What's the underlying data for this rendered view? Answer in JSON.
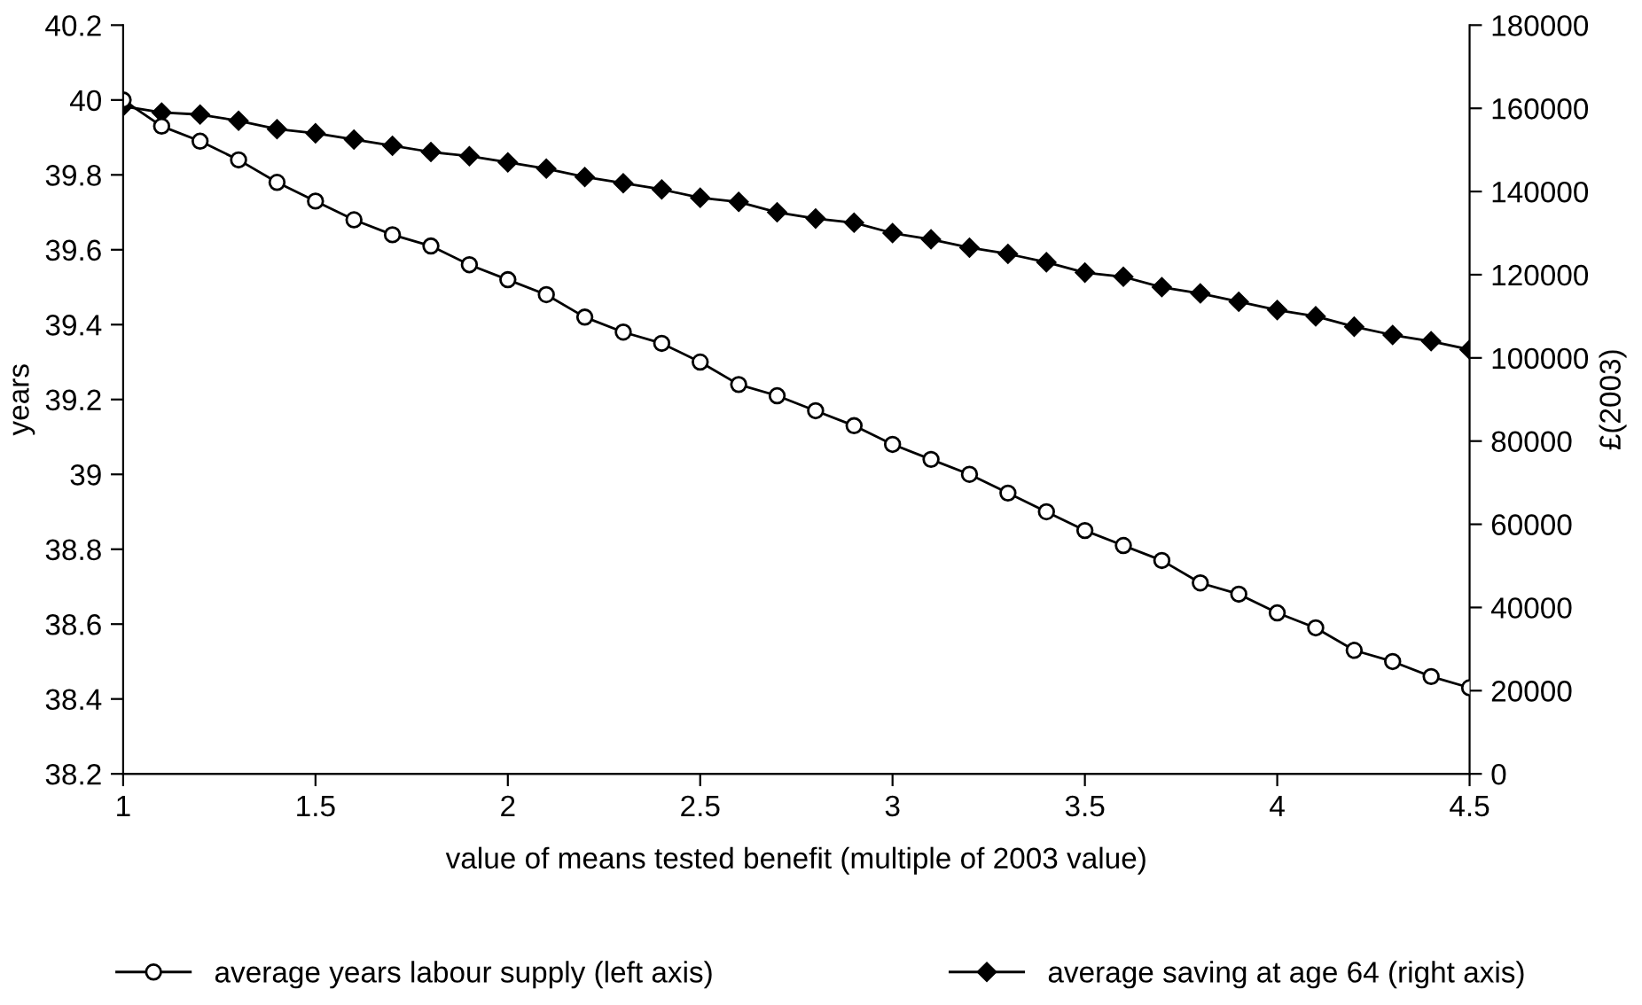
{
  "chart_data": {
    "type": "line",
    "xlabel": "value of means tested benefit (multiple of 2003 value)",
    "ylabel": "years",
    "y2label": "£(2003)",
    "x": [
      1.0,
      1.1,
      1.2,
      1.3,
      1.4,
      1.5,
      1.6,
      1.7,
      1.8,
      1.9,
      2.0,
      2.1,
      2.2,
      2.3,
      2.4,
      2.5,
      2.6,
      2.7,
      2.8,
      2.9,
      3.0,
      3.1,
      3.2,
      3.3,
      3.4,
      3.5,
      3.6,
      3.7,
      3.8,
      3.9,
      4.0,
      4.1,
      4.2,
      4.3,
      4.4,
      4.5
    ],
    "series": [
      {
        "name": "average years labour supply (left axis)",
        "color": "#000000",
        "marker": "circle",
        "values": [
          40.0,
          39.93,
          39.89,
          39.84,
          39.78,
          39.73,
          39.68,
          39.64,
          39.61,
          39.56,
          39.52,
          39.48,
          39.42,
          39.38,
          39.35,
          39.3,
          39.24,
          39.21,
          39.17,
          39.13,
          39.08,
          39.04,
          39.0,
          38.95,
          38.9,
          38.85,
          38.81,
          38.77,
          38.71,
          38.68,
          38.63,
          38.59,
          38.53,
          38.5,
          38.46,
          38.43
        ]
      },
      {
        "name": "average saving at age 64 (right axis)",
        "color": "#000000",
        "marker": "diamond",
        "axis": "y2",
        "values": [
          160500,
          159000,
          158500,
          157000,
          155000,
          154000,
          152500,
          151000,
          149500,
          148500,
          147000,
          145500,
          143500,
          142000,
          140500,
          138500,
          137500,
          135000,
          133500,
          132500,
          130000,
          128500,
          126500,
          125000,
          123000,
          120500,
          119500,
          117000,
          115500,
          113500,
          111500,
          110000,
          107500,
          105500,
          104000,
          102000
        ]
      }
    ],
    "xlim": [
      1,
      4.5
    ],
    "xticks": [
      1,
      1.5,
      2,
      2.5,
      3,
      3.5,
      4,
      4.5
    ],
    "ylim": [
      38.2,
      40.2
    ],
    "yticks": [
      38.2,
      38.4,
      38.6,
      38.8,
      39,
      39.2,
      39.4,
      39.6,
      39.8,
      40,
      40.2
    ],
    "y2lim": [
      0,
      180000
    ],
    "y2ticks": [
      0,
      20000,
      40000,
      60000,
      80000,
      100000,
      120000,
      140000,
      160000,
      180000
    ],
    "grid": false,
    "legend": "bottom",
    "line_style": "solid"
  }
}
